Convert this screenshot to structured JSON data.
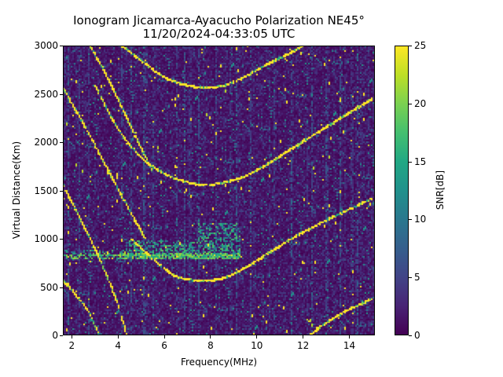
{
  "chart_data": {
    "type": "heatmap",
    "title": "Ionogram Jicamarca-Ayacucho Polarization NE45°",
    "subtitle": "11/20/2024-04:33:05 UTC",
    "xlabel": "Frequency(MHz)",
    "ylabel": "Virtual Distance(Km)",
    "xlim": [
      1.63,
      15.12
    ],
    "ylim": [
      0,
      3000
    ],
    "xticks": [
      2,
      4,
      6,
      8,
      10,
      12,
      14
    ],
    "yticks": [
      0,
      500,
      1000,
      1500,
      2000,
      2500,
      3000
    ],
    "colorbar": {
      "label": "SNR[dB]",
      "range": [
        0,
        25
      ],
      "ticks": [
        0,
        5,
        10,
        15,
        20,
        25
      ],
      "colormap": "viridis"
    },
    "echo_traces": [
      {
        "name": "F-layer 1-hop U-trace",
        "min_frequency_mhz": 7.6,
        "min_distance_km": 570,
        "points": [
          [
            4.6,
            1000
          ],
          [
            5.5,
            800
          ],
          [
            6.5,
            620
          ],
          [
            7.6,
            570
          ],
          [
            8.5,
            590
          ],
          [
            9.5,
            700
          ],
          [
            10.5,
            850
          ],
          [
            11.5,
            1000
          ],
          [
            12.5,
            1130
          ],
          [
            13.5,
            1250
          ],
          [
            15.0,
            1420
          ]
        ]
      },
      {
        "name": "F-layer 2-hop U-trace",
        "min_frequency_mhz": 7.7,
        "min_distance_km": 1560,
        "points": [
          [
            3.0,
            2600
          ],
          [
            4.0,
            2150
          ],
          [
            5.0,
            1850
          ],
          [
            6.0,
            1680
          ],
          [
            7.0,
            1590
          ],
          [
            7.7,
            1560
          ],
          [
            8.5,
            1580
          ],
          [
            9.5,
            1650
          ],
          [
            10.5,
            1780
          ],
          [
            11.5,
            1930
          ],
          [
            12.5,
            2080
          ],
          [
            13.5,
            2230
          ],
          [
            15.0,
            2450
          ]
        ]
      },
      {
        "name": "F-layer 3-hop U-trace",
        "min_frequency_mhz": 7.8,
        "min_distance_km": 2570,
        "points": [
          [
            4.2,
            3000
          ],
          [
            5.0,
            2850
          ],
          [
            6.0,
            2680
          ],
          [
            7.0,
            2590
          ],
          [
            7.8,
            2570
          ],
          [
            8.6,
            2590
          ],
          [
            9.5,
            2680
          ],
          [
            10.5,
            2810
          ],
          [
            11.5,
            2930
          ],
          [
            12.0,
            3000
          ]
        ]
      },
      {
        "name": "Low-frequency oblique trace A",
        "points": [
          [
            1.63,
            570
          ],
          [
            2.2,
            420
          ],
          [
            2.8,
            220
          ],
          [
            3.2,
            0
          ]
        ]
      },
      {
        "name": "Low-frequency oblique trace B",
        "points": [
          [
            1.63,
            1560
          ],
          [
            2.5,
            1150
          ],
          [
            3.2,
            800
          ],
          [
            3.9,
            400
          ],
          [
            4.4,
            0
          ]
        ]
      },
      {
        "name": "Low-frequency oblique trace C",
        "points": [
          [
            1.63,
            2570
          ],
          [
            2.5,
            2200
          ],
          [
            3.5,
            1750
          ],
          [
            4.5,
            1300
          ],
          [
            5.2,
            1000
          ]
        ]
      },
      {
        "name": "Low-frequency oblique trace D",
        "points": [
          [
            2.8,
            3000
          ],
          [
            3.5,
            2700
          ],
          [
            4.5,
            2200
          ],
          [
            5.5,
            1700
          ]
        ]
      },
      {
        "name": "High-frequency 0-hop trace",
        "points": [
          [
            12.3,
            0
          ],
          [
            13.0,
            130
          ],
          [
            14.0,
            270
          ],
          [
            15.0,
            380
          ]
        ]
      }
    ],
    "scatter_band": {
      "name": "E-region spread echo",
      "frequency_range_mhz": [
        1.63,
        9.3
      ],
      "distance_km": 820,
      "spread_upper_km": 1150
    }
  }
}
